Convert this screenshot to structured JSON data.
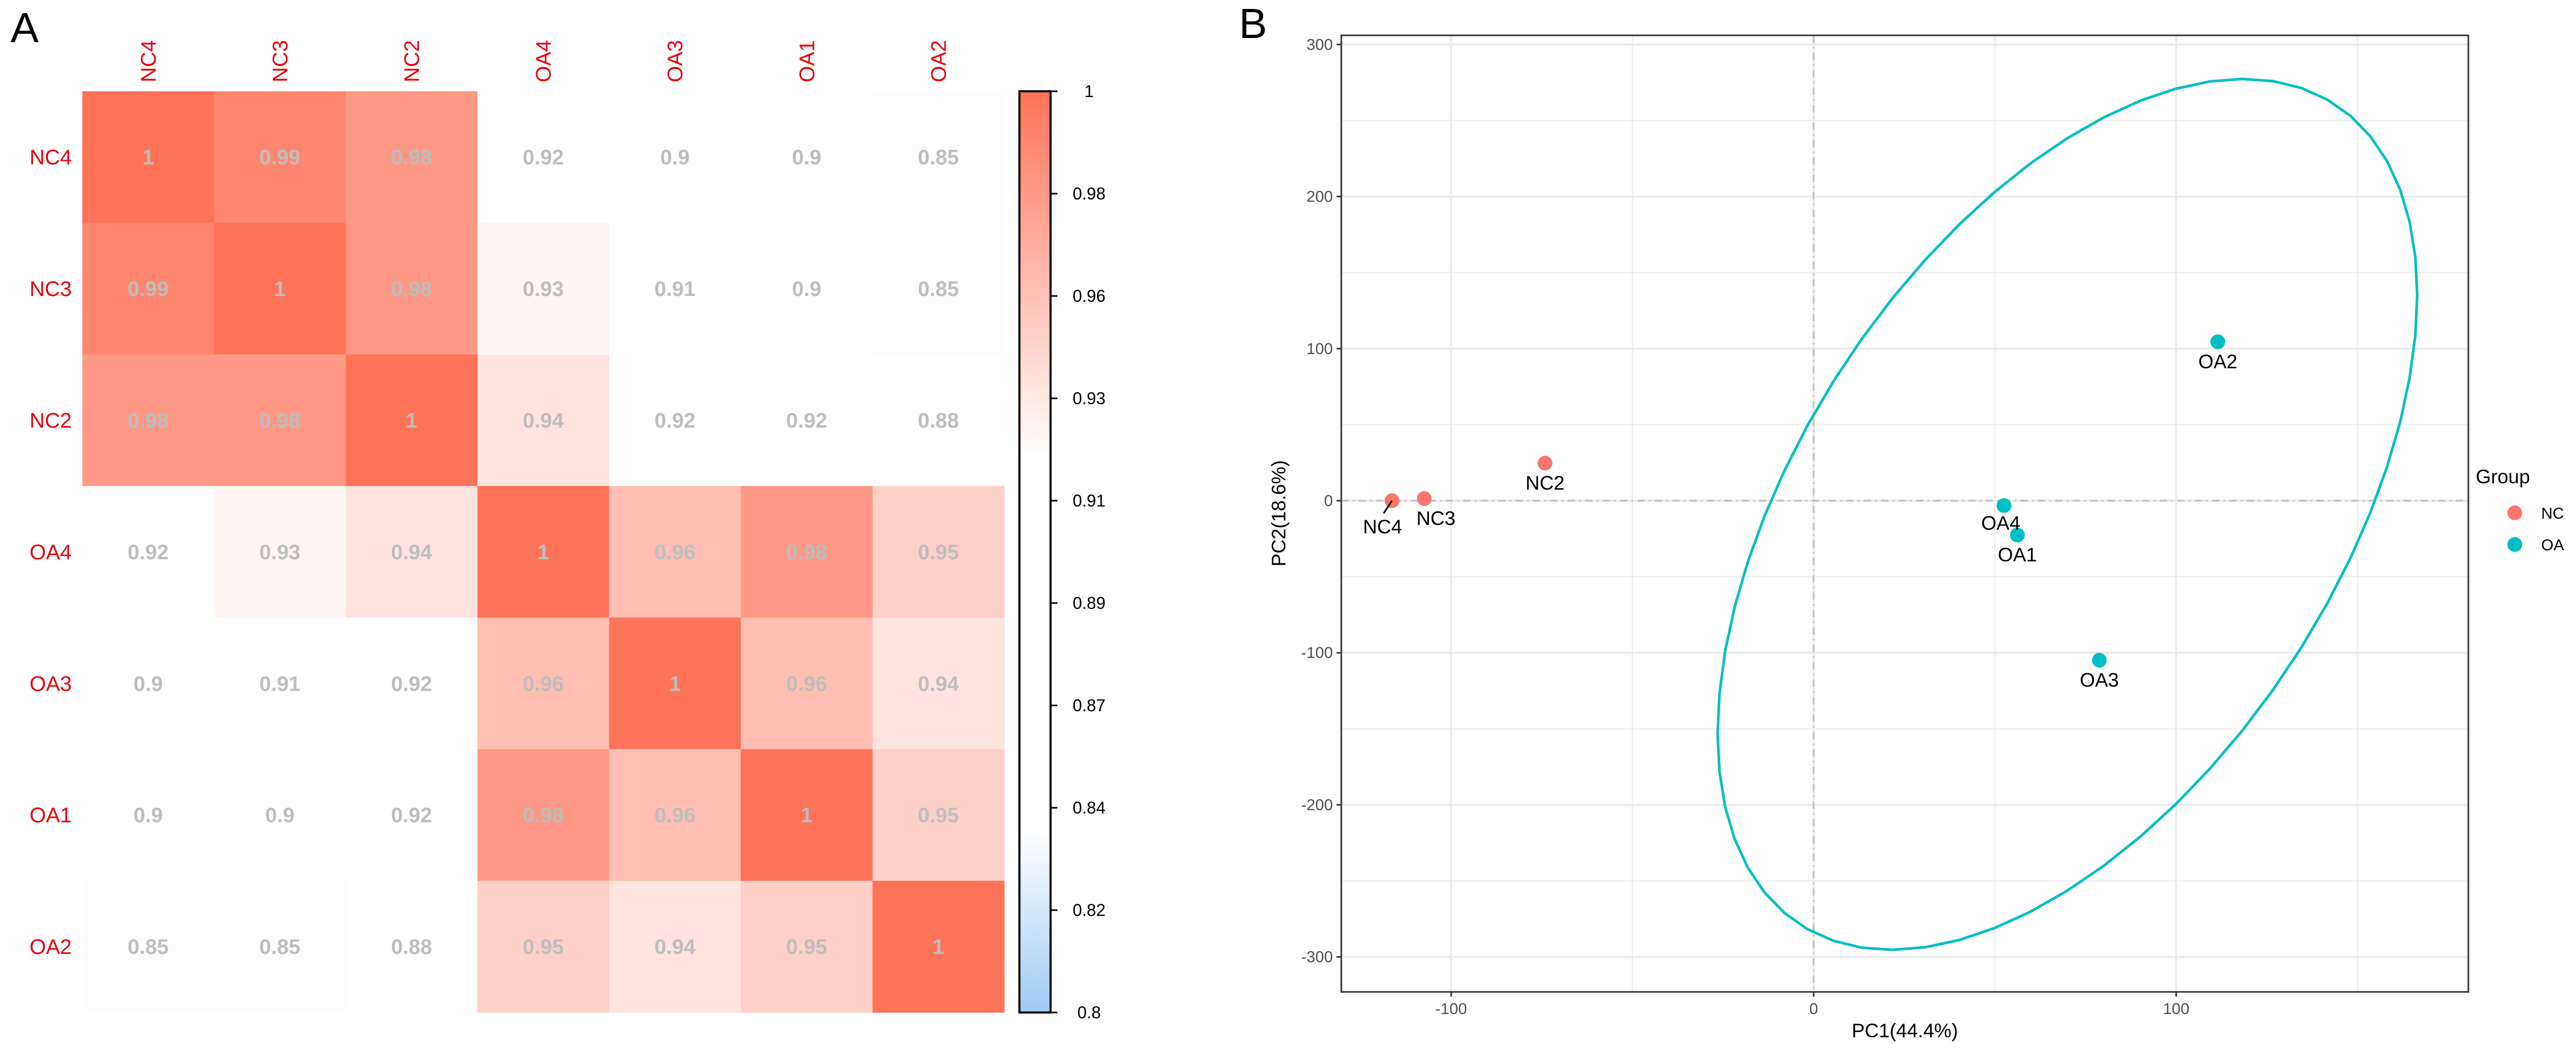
{
  "panels": {
    "a_letter": "A",
    "b_letter": "B"
  },
  "chart_data": [
    {
      "type": "heatmap",
      "title": "",
      "row_labels": [
        "NC4",
        "NC3",
        "NC2",
        "OA4",
        "OA3",
        "OA1",
        "OA2"
      ],
      "col_labels": [
        "NC4",
        "NC3",
        "NC2",
        "OA4",
        "OA3",
        "OA1",
        "OA2"
      ],
      "values": [
        [
          1,
          0.99,
          0.98,
          0.92,
          0.9,
          0.9,
          0.85
        ],
        [
          0.99,
          1,
          0.98,
          0.93,
          0.91,
          0.9,
          0.85
        ],
        [
          0.98,
          0.98,
          1,
          0.94,
          0.92,
          0.92,
          0.88
        ],
        [
          0.92,
          0.93,
          0.94,
          1,
          0.96,
          0.98,
          0.95
        ],
        [
          0.9,
          0.91,
          0.92,
          0.96,
          1,
          0.96,
          0.94
        ],
        [
          0.9,
          0.9,
          0.92,
          0.98,
          0.96,
          1,
          0.95
        ],
        [
          0.85,
          0.85,
          0.88,
          0.95,
          0.94,
          0.95,
          1
        ]
      ],
      "cell_text": [
        [
          "1",
          "0.99",
          "0.98",
          "0.92",
          "0.9",
          "0.9",
          "0.85"
        ],
        [
          "0.99",
          "1",
          "0.98",
          "0.93",
          "0.91",
          "0.9",
          "0.85"
        ],
        [
          "0.98",
          "0.98",
          "1",
          "0.94",
          "0.92",
          "0.92",
          "0.88"
        ],
        [
          "0.92",
          "0.93",
          "0.94",
          "1",
          "0.96",
          "0.98",
          "0.95"
        ],
        [
          "0.9",
          "0.91",
          "0.92",
          "0.96",
          "1",
          "0.96",
          "0.94"
        ],
        [
          "0.9",
          "0.9",
          "0.92",
          "0.98",
          "0.96",
          "1",
          "0.95"
        ],
        [
          "0.85",
          "0.85",
          "0.88",
          "0.95",
          "0.94",
          "0.95",
          "1"
        ]
      ],
      "colorbar": {
        "range": [
          0.8,
          1
        ],
        "tick_labels": [
          "1",
          "0.98",
          "0.96",
          "0.93",
          "0.91",
          "0.89",
          "0.87",
          "0.84",
          "0.82",
          "0.8"
        ],
        "colors": {
          "low": "#9ECBF3",
          "mid": "#FFFFFF",
          "high": "#FF7358"
        }
      },
      "label_color": "#E8000B",
      "cell_text_color": "#BDBDBD"
    },
    {
      "type": "scatter",
      "title": "",
      "xlabel": "PC1(44.4%)",
      "ylabel": "PC2(18.6%)",
      "xlim": [
        -130.3,
        180.6
      ],
      "ylim": [
        -323,
        306
      ],
      "x_ticks": [
        -100,
        0,
        100
      ],
      "x_tick_labels": [
        "-100",
        "0",
        "100"
      ],
      "y_ticks": [
        300,
        200,
        100,
        0,
        -100,
        -200,
        -300
      ],
      "y_tick_labels": [
        "300",
        "200",
        "100",
        "0",
        "-100",
        "-200",
        "-300"
      ],
      "grid": true,
      "reference_lines": {
        "x": 0,
        "y": 0,
        "style": "dot-dash"
      },
      "series": [
        {
          "name": "NC",
          "color": "#F8766D",
          "points": [
            {
              "label": "NC4",
              "x": -116.3,
              "y": 0.0
            },
            {
              "label": "NC3",
              "x": -107.4,
              "y": 1.4
            },
            {
              "label": "NC2",
              "x": -74.1,
              "y": 24.7
            }
          ]
        },
        {
          "name": "OA",
          "color": "#00BFC4",
          "points": [
            {
              "label": "OA4",
              "x": 52.5,
              "y": -3.2
            },
            {
              "label": "OA1",
              "x": 56.2,
              "y": -22.6
            },
            {
              "label": "OA3",
              "x": 78.8,
              "y": -104.9
            },
            {
              "label": "OA2",
              "x": 111.5,
              "y": 104.5
            }
          ]
        }
      ],
      "ellipse": {
        "group": "OA",
        "color": "#00BFC4",
        "center": [
          70,
          -9
        ],
        "conjugate_u": [
          96.5,
          144.2
        ],
        "conjugate_v": [
          0,
          247.4
        ]
      },
      "legend": {
        "title": "Group",
        "placement": "right",
        "entries": [
          {
            "label": "NC",
            "color": "#F8766D"
          },
          {
            "label": "OA",
            "color": "#00BFC4"
          }
        ]
      }
    }
  ]
}
